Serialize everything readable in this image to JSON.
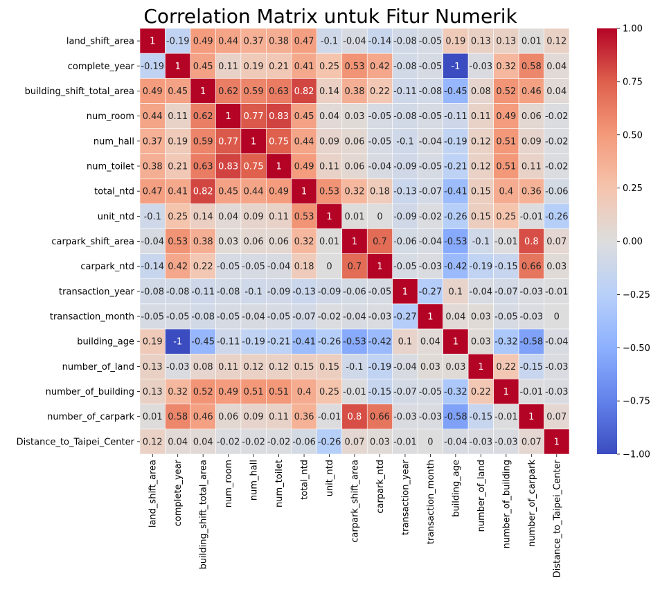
{
  "chart_data": {
    "type": "heatmap",
    "title": "Correlation Matrix untuk Fitur Numerik",
    "labels": [
      "land_shift_area",
      "complete_year",
      "building_shift_total_area",
      "num_room",
      "num_hall",
      "num_toilet",
      "total_ntd",
      "unit_ntd",
      "carpark_shift_area",
      "carpark_ntd",
      "transaction_year",
      "transaction_month",
      "building_age",
      "number_of_land",
      "number_of_building",
      "number_of_carpark",
      "Distance_to_Taipei_Center"
    ],
    "values": [
      [
        1,
        -0.19,
        0.49,
        0.44,
        0.37,
        0.38,
        0.47,
        -0.1,
        -0.04,
        -0.14,
        -0.08,
        -0.05,
        0.19,
        0.13,
        0.13,
        0.01,
        0.12
      ],
      [
        -0.19,
        1,
        0.45,
        0.11,
        0.19,
        0.21,
        0.41,
        0.25,
        0.53,
        0.42,
        -0.08,
        -0.05,
        -1,
        -0.03,
        0.32,
        0.58,
        0.04
      ],
      [
        0.49,
        0.45,
        1,
        0.62,
        0.59,
        0.63,
        0.82,
        0.14,
        0.38,
        0.22,
        -0.11,
        -0.08,
        -0.45,
        0.08,
        0.52,
        0.46,
        0.04
      ],
      [
        0.44,
        0.11,
        0.62,
        1,
        0.77,
        0.83,
        0.45,
        0.04,
        0.03,
        -0.05,
        -0.08,
        -0.05,
        -0.11,
        0.11,
        0.49,
        0.06,
        -0.02
      ],
      [
        0.37,
        0.19,
        0.59,
        0.77,
        1,
        0.75,
        0.44,
        0.09,
        0.06,
        -0.05,
        -0.1,
        -0.04,
        -0.19,
        0.12,
        0.51,
        0.09,
        -0.02
      ],
      [
        0.38,
        0.21,
        0.63,
        0.83,
        0.75,
        1,
        0.49,
        0.11,
        0.06,
        -0.04,
        -0.09,
        -0.05,
        -0.21,
        0.12,
        0.51,
        0.11,
        -0.02
      ],
      [
        0.47,
        0.41,
        0.82,
        0.45,
        0.44,
        0.49,
        1,
        0.53,
        0.32,
        0.18,
        -0.13,
        -0.07,
        -0.41,
        0.15,
        0.4,
        0.36,
        -0.06
      ],
      [
        -0.1,
        0.25,
        0.14,
        0.04,
        0.09,
        0.11,
        0.53,
        1,
        0.01,
        0,
        -0.09,
        -0.02,
        -0.26,
        0.15,
        0.25,
        -0.01,
        -0.26
      ],
      [
        -0.04,
        0.53,
        0.38,
        0.03,
        0.06,
        0.06,
        0.32,
        0.01,
        1,
        0.7,
        -0.06,
        -0.04,
        -0.53,
        -0.1,
        -0.01,
        0.8,
        0.07
      ],
      [
        -0.14,
        0.42,
        0.22,
        -0.05,
        -0.05,
        -0.04,
        0.18,
        0,
        0.7,
        1,
        -0.05,
        -0.03,
        -0.42,
        -0.19,
        -0.15,
        0.66,
        0.03
      ],
      [
        -0.08,
        -0.08,
        -0.11,
        -0.08,
        -0.1,
        -0.09,
        -0.13,
        -0.09,
        -0.06,
        -0.05,
        1,
        -0.27,
        0.1,
        -0.04,
        -0.07,
        -0.03,
        -0.01
      ],
      [
        -0.05,
        -0.05,
        -0.08,
        -0.05,
        -0.04,
        -0.05,
        -0.07,
        -0.02,
        -0.04,
        -0.03,
        -0.27,
        1,
        0.04,
        0.03,
        -0.05,
        -0.03,
        0
      ],
      [
        0.19,
        -1,
        -0.45,
        -0.11,
        -0.19,
        -0.21,
        -0.41,
        -0.26,
        -0.53,
        -0.42,
        0.1,
        0.04,
        1,
        0.03,
        -0.32,
        -0.58,
        -0.04
      ],
      [
        0.13,
        -0.03,
        0.08,
        0.11,
        0.12,
        0.12,
        0.15,
        0.15,
        -0.1,
        -0.19,
        -0.04,
        0.03,
        0.03,
        1,
        0.22,
        -0.15,
        -0.03
      ],
      [
        0.13,
        0.32,
        0.52,
        0.49,
        0.51,
        0.51,
        0.4,
        0.25,
        -0.01,
        -0.15,
        -0.07,
        -0.05,
        -0.32,
        0.22,
        1,
        -0.01,
        -0.03
      ],
      [
        0.01,
        0.58,
        0.46,
        0.06,
        0.09,
        0.11,
        0.36,
        -0.01,
        0.8,
        0.66,
        -0.03,
        -0.03,
        -0.58,
        -0.15,
        -0.01,
        1,
        0.07
      ],
      [
        0.12,
        0.04,
        0.04,
        -0.02,
        -0.02,
        -0.02,
        -0.06,
        -0.26,
        0.07,
        0.03,
        -0.01,
        0,
        -0.04,
        -0.03,
        -0.03,
        0.07,
        1
      ]
    ],
    "vmin": -1,
    "vmax": 1,
    "colormap": "coolwarm",
    "colorbar_ticks": [
      "1.00",
      "0.75",
      "0.50",
      "0.25",
      "0.00",
      "−0.25",
      "−0.50",
      "−0.75",
      "−1.00"
    ],
    "grid_line_color": "#ffffff"
  }
}
